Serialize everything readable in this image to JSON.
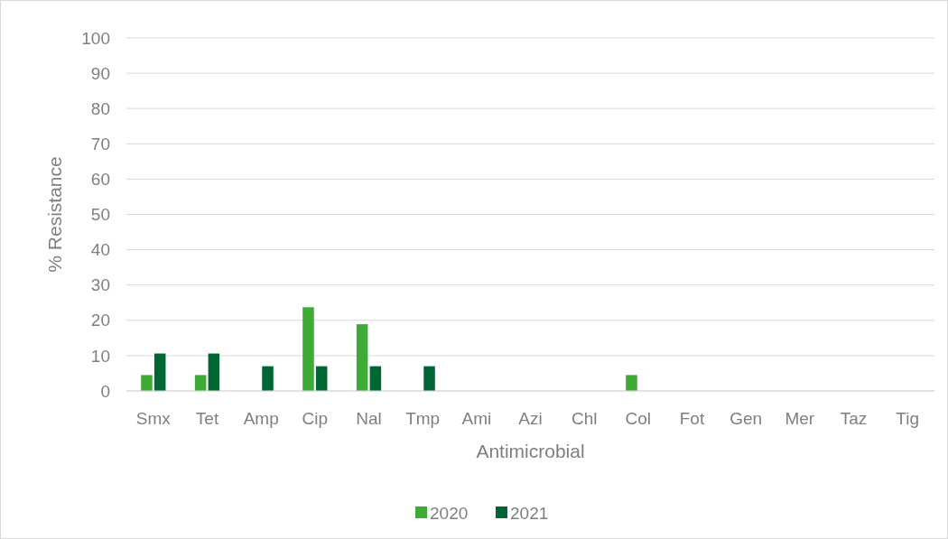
{
  "chart_data": {
    "type": "bar",
    "xlabel": "Antimicrobial",
    "ylabel": "% Resistance",
    "categories": [
      "Smx",
      "Tet",
      "Amp",
      "Cip",
      "Nal",
      "Tmp",
      "Ami",
      "Azi",
      "Chl",
      "Col",
      "Fot",
      "Gen",
      "Mer",
      "Taz",
      "Tig"
    ],
    "series": [
      {
        "name": "2020",
        "color": "#3dab35",
        "values": [
          4.5,
          4.5,
          0,
          23.7,
          18.9,
          0,
          0,
          0,
          0,
          4.5,
          0,
          0,
          0,
          0,
          0
        ]
      },
      {
        "name": "2021",
        "color": "#006633",
        "values": [
          10.6,
          10.6,
          7.0,
          7.0,
          7.0,
          7.0,
          0,
          0,
          0,
          0,
          0,
          0,
          0,
          0,
          0
        ]
      }
    ],
    "ylim": [
      0,
      100
    ],
    "yticks": [
      0,
      10,
      20,
      30,
      40,
      50,
      60,
      70,
      80,
      90,
      100
    ],
    "grid": "y",
    "legend": "bottom"
  }
}
